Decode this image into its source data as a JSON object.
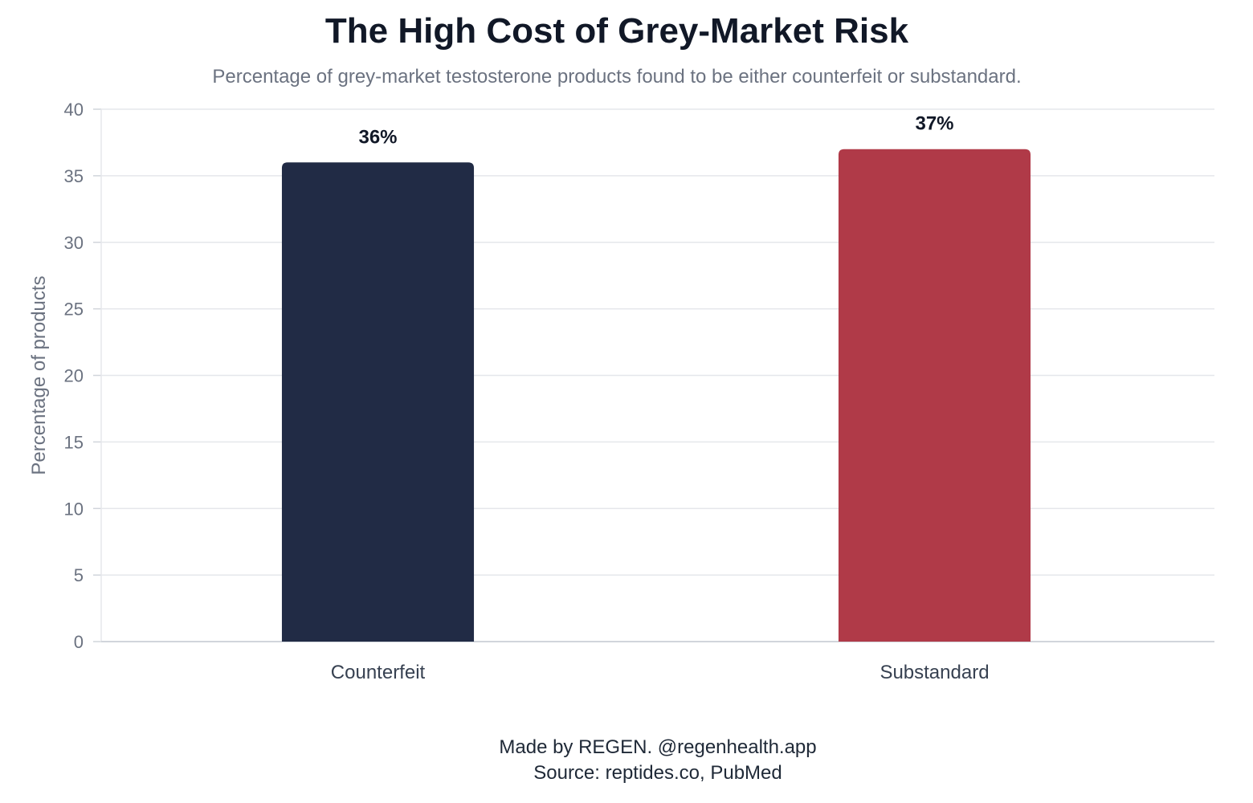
{
  "title": "The High Cost of Grey-Market Risk",
  "subtitle": "Percentage of grey-market testosterone products found to be either counterfeit or substandard.",
  "footer": {
    "credit": "Made by REGEN. @regenhealth.app",
    "source": "Source: reptides.co, PubMed"
  },
  "chart_data": {
    "type": "bar",
    "categories": [
      "Counterfeit",
      "Substandard"
    ],
    "values": [
      36,
      37
    ],
    "value_labels": [
      "36%",
      "37%"
    ],
    "bar_colors": [
      "#212b45",
      "#b03a48"
    ],
    "ylabel": "Percentage of products",
    "xlabel": "",
    "ylim": [
      0,
      40
    ],
    "yticks": [
      0,
      5,
      10,
      15,
      20,
      25,
      30,
      35,
      40
    ],
    "grid": true,
    "legend": "none"
  }
}
